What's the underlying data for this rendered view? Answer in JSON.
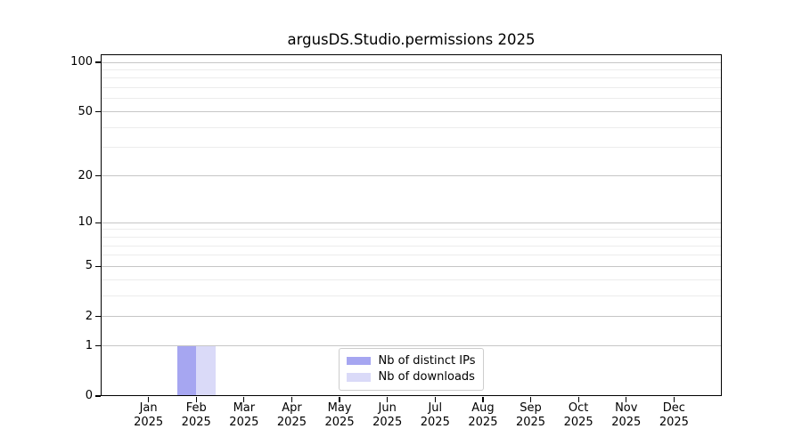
{
  "chart_data": {
    "type": "bar",
    "title": "argusDS.Studio.permissions 2025",
    "categories": [
      {
        "month": "Jan",
        "year": "2025"
      },
      {
        "month": "Feb",
        "year": "2025"
      },
      {
        "month": "Mar",
        "year": "2025"
      },
      {
        "month": "Apr",
        "year": "2025"
      },
      {
        "month": "May",
        "year": "2025"
      },
      {
        "month": "Jun",
        "year": "2025"
      },
      {
        "month": "Jul",
        "year": "2025"
      },
      {
        "month": "Aug",
        "year": "2025"
      },
      {
        "month": "Sep",
        "year": "2025"
      },
      {
        "month": "Oct",
        "year": "2025"
      },
      {
        "month": "Nov",
        "year": "2025"
      },
      {
        "month": "Dec",
        "year": "2025"
      }
    ],
    "series": [
      {
        "name": "Nb of distinct IPs",
        "color": "#a6a6f1",
        "values": [
          0,
          1,
          0,
          0,
          0,
          0,
          0,
          0,
          0,
          0,
          0,
          0
        ]
      },
      {
        "name": "Nb of downloads",
        "color": "#dadaf8",
        "values": [
          0,
          1,
          0,
          0,
          0,
          0,
          0,
          0,
          0,
          0,
          0,
          0
        ]
      }
    ],
    "yscale": "log1p",
    "ylim": [
      0,
      112
    ],
    "yticks": [
      0,
      1,
      2,
      5,
      10,
      20,
      50,
      100
    ],
    "minor_gridlines": [
      3,
      4,
      6,
      7,
      8,
      9,
      30,
      40,
      60,
      70,
      80,
      90
    ],
    "grid": true,
    "legend_position": "lower center"
  }
}
